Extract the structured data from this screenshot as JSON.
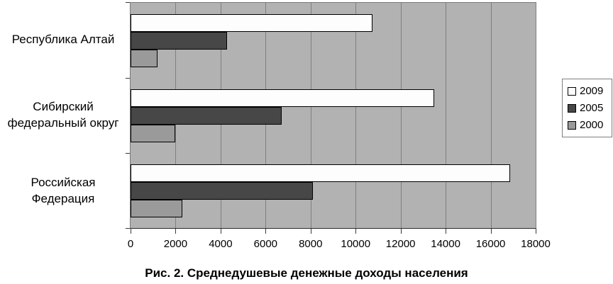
{
  "chart_data": {
    "type": "bar",
    "orientation": "horizontal",
    "caption": "Рис. 2. Среднедушевые денежные доходы населения",
    "categories": [
      "Республика Алтай",
      "Сибирский федеральный округ",
      "Российская Федерация"
    ],
    "series": [
      {
        "name": "2009",
        "color": "#fdfdfd",
        "values": [
          10750,
          13500,
          16850
        ]
      },
      {
        "name": "2005",
        "color": "#474747",
        "values": [
          4300,
          6700,
          8100
        ]
      },
      {
        "name": "2000",
        "color": "#9a9a9a",
        "values": [
          1200,
          2000,
          2300
        ]
      }
    ],
    "xlim": [
      0,
      18000
    ],
    "x_ticks": [
      0,
      2000,
      4000,
      6000,
      8000,
      10000,
      12000,
      14000,
      16000,
      18000
    ],
    "xlabel": "",
    "ylabel": "",
    "grid": true,
    "legend_position": "right",
    "colors": {
      "plot_background": "#b2b2b2",
      "gridline": "#7f7f7f",
      "bar_border": "#000000",
      "bar_2009": "#fdfdfd",
      "bar_2005": "#474747",
      "bar_2000": "#9a9a9a",
      "legend_border": "#7f7f7f",
      "page_background": "#ffffff"
    }
  }
}
